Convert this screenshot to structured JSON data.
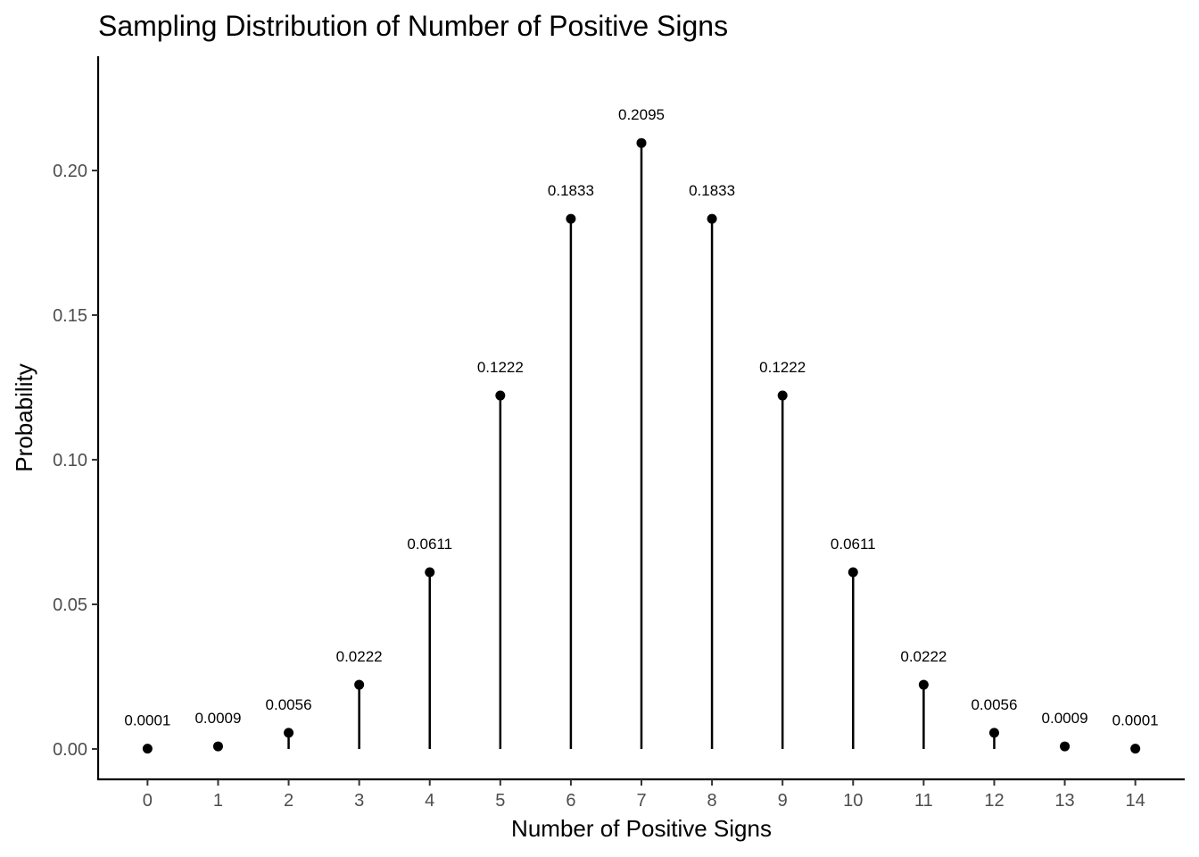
{
  "chart_data": {
    "type": "lollipop",
    "title": "Sampling Distribution of Number of Positive Signs",
    "xlabel": "Number of Positive Signs",
    "ylabel": "Probability",
    "x": [
      0,
      1,
      2,
      3,
      4,
      5,
      6,
      7,
      8,
      9,
      10,
      11,
      12,
      13,
      14
    ],
    "values": [
      0.0001,
      0.0009,
      0.0056,
      0.0222,
      0.0611,
      0.1222,
      0.1833,
      0.2095,
      0.1833,
      0.1222,
      0.0611,
      0.0222,
      0.0056,
      0.0009,
      0.0001
    ],
    "data_labels": [
      "0.0001",
      "0.0009",
      "0.0056",
      "0.0222",
      "0.0611",
      "0.1222",
      "0.1833",
      "0.2095",
      "0.1833",
      "0.1222",
      "0.0611",
      "0.0222",
      "0.0056",
      "0.0009",
      "0.0001"
    ],
    "x_tick_labels": [
      "0",
      "1",
      "2",
      "3",
      "4",
      "5",
      "6",
      "7",
      "8",
      "9",
      "10",
      "11",
      "12",
      "13",
      "14"
    ],
    "y_ticks": [
      0,
      0.05,
      0.1,
      0.15,
      0.2
    ],
    "y_tick_labels": [
      "0.00",
      "0.05",
      "0.10",
      "0.15",
      "0.20"
    ],
    "xlim": [
      -0.7,
      14.7
    ],
    "ylim": [
      -0.0105,
      0.2395
    ],
    "grid": false,
    "legend": "none",
    "colors": {
      "stem": "#000000",
      "point": "#000000",
      "axis": "#000000",
      "tick_label": "#4d4d4d"
    }
  }
}
